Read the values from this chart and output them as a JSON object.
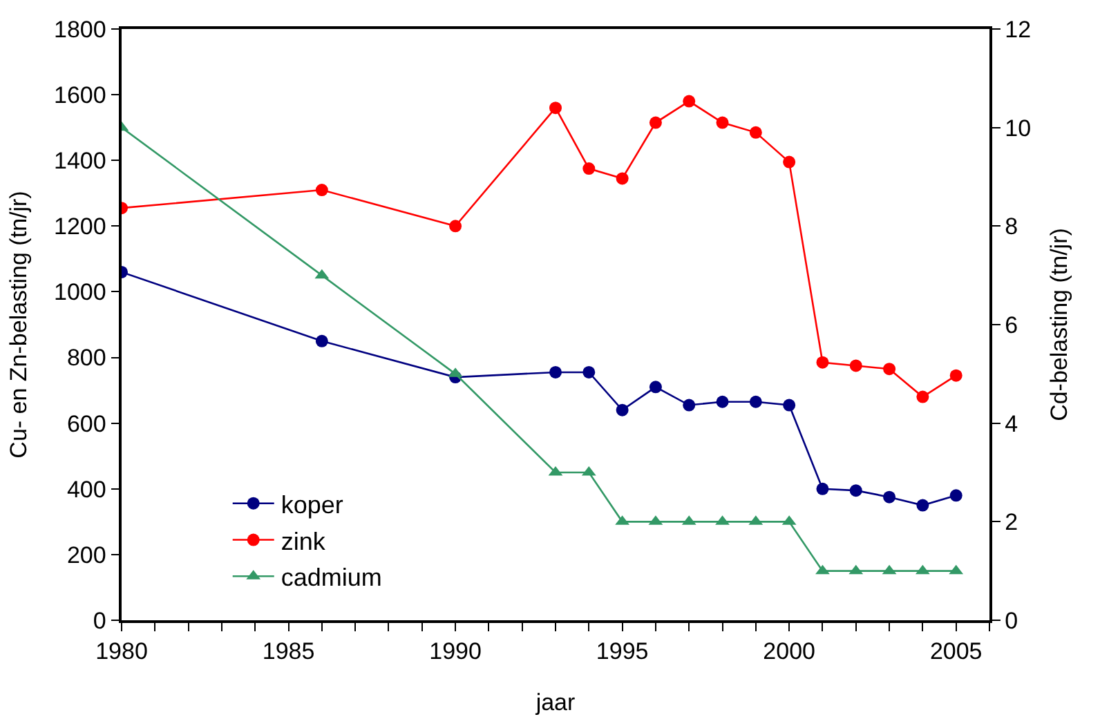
{
  "chart_data": {
    "type": "line",
    "xlabel": "jaar",
    "ylabel": "Cu- en Zn-belasting (tn/jr)",
    "y2label": "Cd-belasting (tn/jr)",
    "x": [
      1980,
      1986,
      1990,
      1993,
      1994,
      1995,
      1996,
      1997,
      1998,
      1999,
      2000,
      2001,
      2002,
      2003,
      2004,
      2005
    ],
    "series": [
      {
        "name": "koper",
        "color": "#000080",
        "marker": "circle",
        "values": [
          1060,
          850,
          740,
          755,
          755,
          640,
          710,
          655,
          665,
          665,
          655,
          400,
          395,
          375,
          350,
          380
        ]
      },
      {
        "name": "zink",
        "color": "#ff0000",
        "marker": "circle",
        "values": [
          1255,
          1310,
          1200,
          1560,
          1375,
          1345,
          1515,
          1580,
          1515,
          1485,
          1395,
          785,
          775,
          765,
          680,
          745
        ]
      },
      {
        "name": "cadmium",
        "color": "#339966",
        "marker": "triangle",
        "axis": "y2",
        "values": [
          10,
          7,
          5,
          3,
          3,
          2,
          2,
          2,
          2,
          2,
          2,
          1,
          1,
          1,
          1,
          1
        ]
      }
    ],
    "xlim": [
      1980,
      2006
    ],
    "xticks": [
      1980,
      {
        "value": 1981,
        "label": null
      },
      {
        "value": 1982,
        "label": null
      },
      {
        "value": 1983,
        "label": null
      },
      {
        "value": 1984,
        "label": null
      },
      1985,
      {
        "value": 1986,
        "label": null
      },
      {
        "value": 1987,
        "label": null
      },
      {
        "value": 1988,
        "label": null
      },
      {
        "value": 1989,
        "label": null
      },
      1990,
      {
        "value": 1991,
        "label": null
      },
      {
        "value": 1992,
        "label": null
      },
      {
        "value": 1993,
        "label": null
      },
      {
        "value": 1994,
        "label": null
      },
      1995,
      {
        "value": 1996,
        "label": null
      },
      {
        "value": 1997,
        "label": null
      },
      {
        "value": 1998,
        "label": null
      },
      {
        "value": 1999,
        "label": null
      },
      2000,
      {
        "value": 2001,
        "label": null
      },
      {
        "value": 2002,
        "label": null
      },
      {
        "value": 2003,
        "label": null
      },
      {
        "value": 2004,
        "label": null
      },
      2005,
      {
        "value": 2006,
        "label": null
      }
    ],
    "ylim": [
      0,
      1800
    ],
    "yticks": [
      0,
      200,
      400,
      600,
      800,
      1000,
      1200,
      1400,
      1600,
      1800
    ],
    "y2lim": [
      0,
      12
    ],
    "y2ticks": [
      0,
      2,
      4,
      6,
      8,
      10,
      12
    ],
    "legend": "bottom left",
    "line_style": "solid"
  }
}
